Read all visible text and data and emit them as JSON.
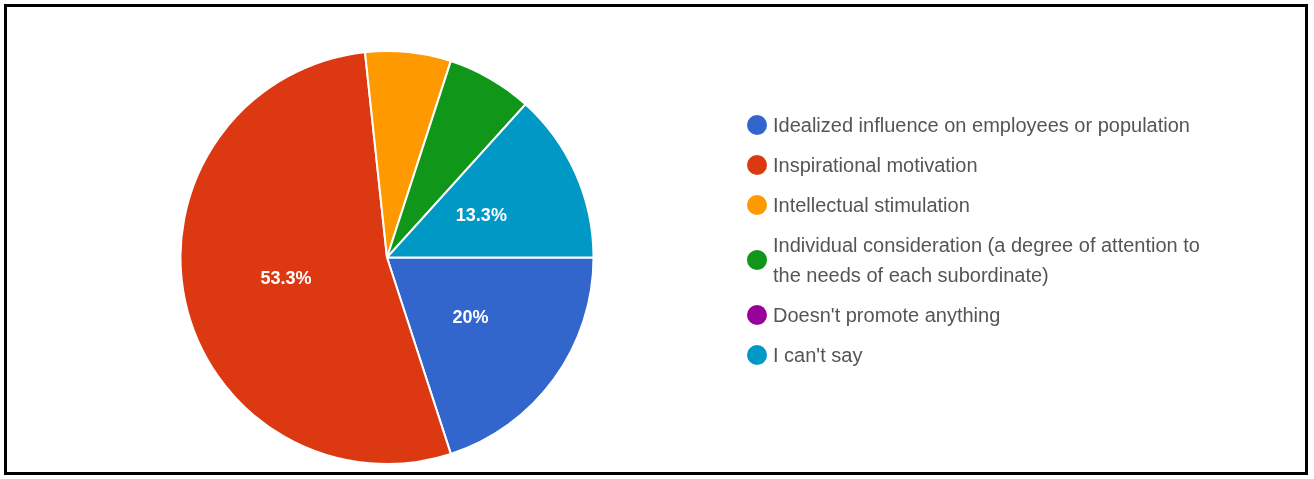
{
  "chart_data": {
    "type": "pie",
    "categories": [
      "Idealized influence on employees or population",
      "Inspirational motivation",
      "Intellectual stimulation",
      "Individual consideration (a degree of attention to the needs of each subordinate)",
      "Doesn't promote anything",
      "I can't say"
    ],
    "values": [
      20,
      53.3,
      6.7,
      6.7,
      0,
      13.3
    ],
    "colors": [
      "#3366cc",
      "#dc3912",
      "#ff9900",
      "#109618",
      "#990099",
      "#0099c6"
    ],
    "value_labels": [
      "20%",
      "53.3%",
      null,
      null,
      null,
      "13.3%"
    ],
    "legend": "right"
  }
}
